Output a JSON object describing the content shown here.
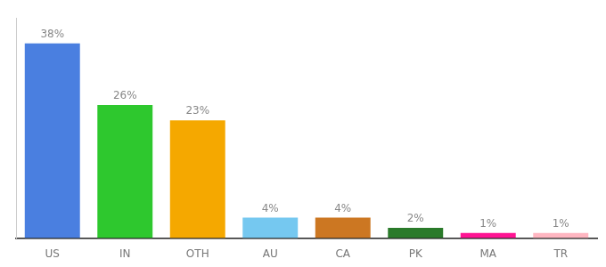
{
  "chart_data": {
    "type": "bar",
    "categories": [
      "US",
      "IN",
      "OTH",
      "AU",
      "CA",
      "PK",
      "MA",
      "TR"
    ],
    "values": [
      38,
      26,
      23,
      4,
      4,
      2,
      1,
      1
    ],
    "value_labels": [
      "38%",
      "26%",
      "23%",
      "4%",
      "4%",
      "2%",
      "1%",
      "1%"
    ],
    "colors": [
      "#4a7fe0",
      "#2ec82e",
      "#f5a800",
      "#75c8f0",
      "#cc7722",
      "#2a7a2a",
      "#ff1493",
      "#ffb6c1"
    ],
    "ylim": [
      0,
      43
    ],
    "grid": false,
    "data_labels": true,
    "tick_labels": "x"
  }
}
